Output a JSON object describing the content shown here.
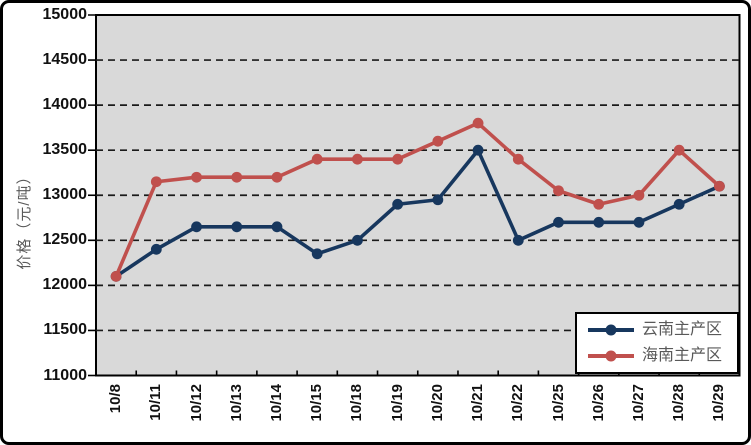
{
  "figure": {
    "plot_background": "#d9d9d9",
    "grid_color": "#1a1a1a",
    "axis_color": "#000000",
    "outer_border_color": "#000000"
  },
  "chart_data": {
    "type": "line",
    "title": "",
    "xlabel": "",
    "ylabel": "价格（元/吨）",
    "ylim": [
      11000,
      15000
    ],
    "yticks": [
      15000,
      14500,
      14000,
      13500,
      13000,
      12500,
      12000,
      11500,
      11000
    ],
    "grid": "horizontal-dashed",
    "legend_position": "bottom-right",
    "categories": [
      "10/8",
      "10/11",
      "10/12",
      "10/13",
      "10/14",
      "10/15",
      "10/18",
      "10/19",
      "10/20",
      "10/21",
      "10/22",
      "10/25",
      "10/26",
      "10/27",
      "10/28",
      "10/29"
    ],
    "series": [
      {
        "name": "云南主产区",
        "color": "#17375E",
        "marker": "circle",
        "values": [
          12100,
          12400,
          12650,
          12650,
          12650,
          12350,
          12500,
          12900,
          12950,
          13500,
          12500,
          12700,
          12700,
          12700,
          12900,
          13100
        ]
      },
      {
        "name": "海南主产区",
        "color": "#C0504D",
        "marker": "circle",
        "values": [
          12100,
          13150,
          13200,
          13200,
          13200,
          13400,
          13400,
          13400,
          13600,
          13800,
          13400,
          13050,
          12900,
          13000,
          13500,
          13100
        ]
      }
    ]
  }
}
